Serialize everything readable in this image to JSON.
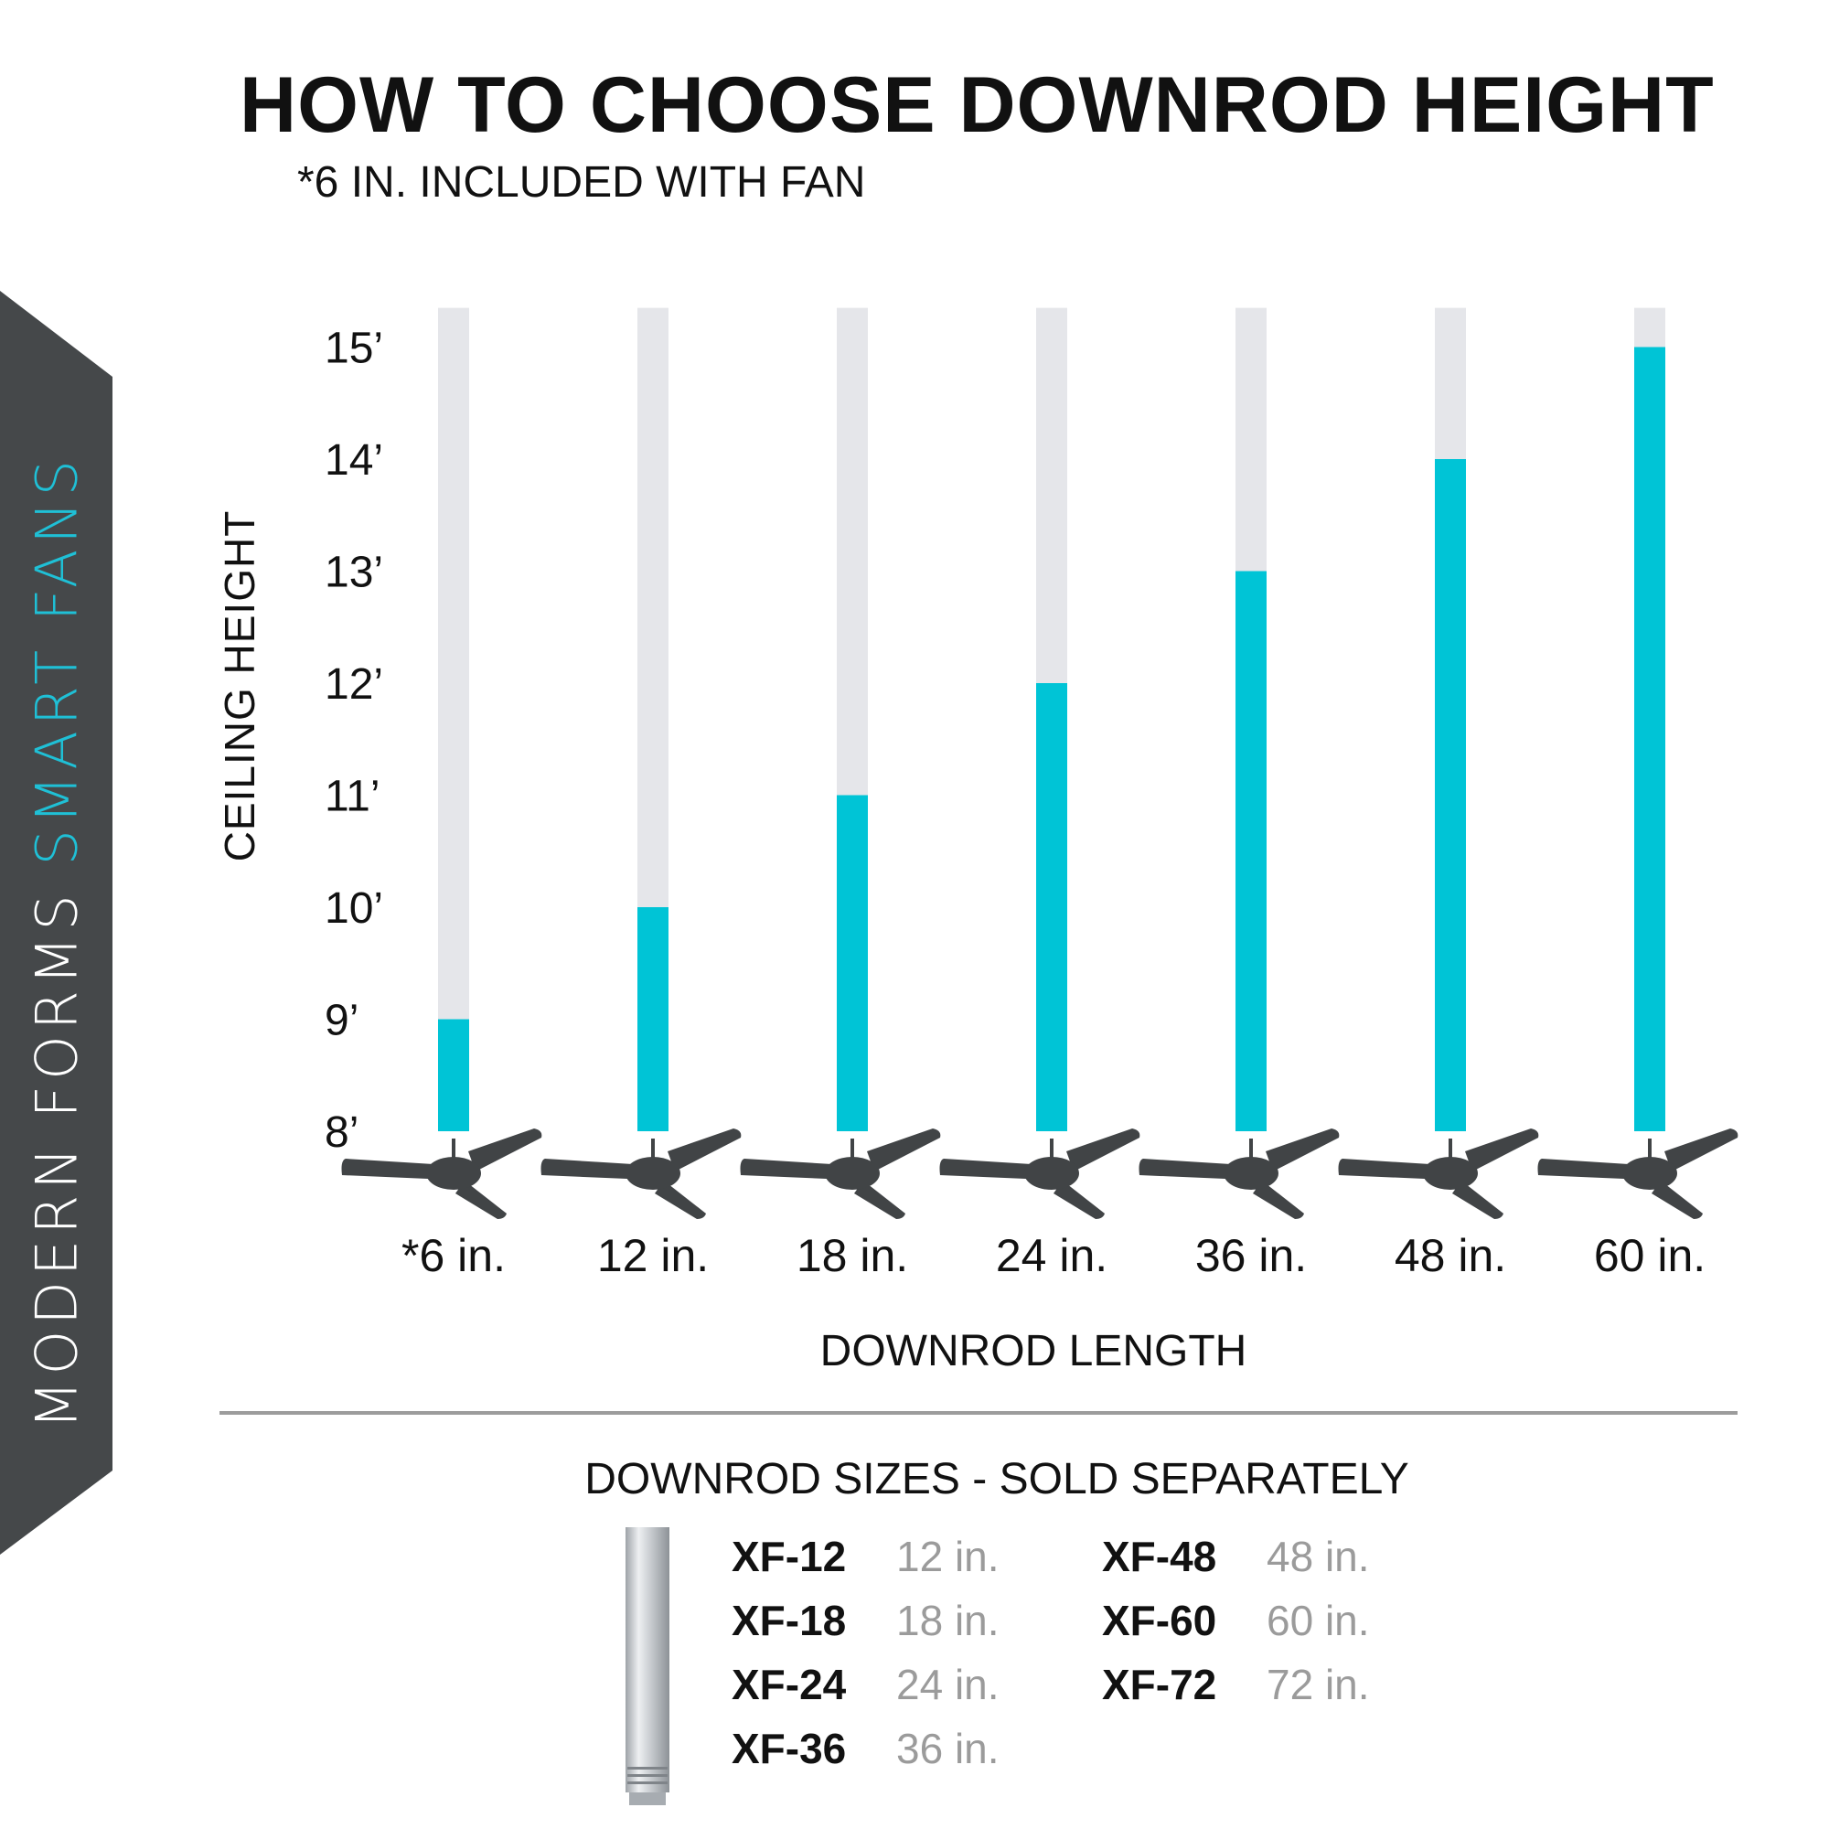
{
  "brand": {
    "part1": "MODERN FORMS",
    "part2": "SMART FANS"
  },
  "colors": {
    "accent": "#00c4d6",
    "track": "#e5e6ea",
    "fan": "#414446",
    "side_tab": "#45484a"
  },
  "header": {
    "title": "HOW TO CHOOSE DOWNROD HEIGHT",
    "subtitle": "*6 IN. INCLUDED WITH FAN"
  },
  "chart_data": {
    "type": "bar",
    "xlabel": "DOWNROD LENGTH",
    "ylabel": "CEILING HEIGHT",
    "categories": [
      "*6 in.",
      "12 in.",
      "18 in.",
      "24 in.",
      "36 in.",
      "48 in.",
      "60 in."
    ],
    "values": [
      9,
      10,
      11,
      12,
      13,
      14,
      15
    ],
    "y_ticks": [
      {
        "value": 8,
        "label": "8’"
      },
      {
        "value": 9,
        "label": "9’"
      },
      {
        "value": 10,
        "label": "10’"
      },
      {
        "value": 11,
        "label": "11’"
      },
      {
        "value": 12,
        "label": "12’"
      },
      {
        "value": 13,
        "label": "13’"
      },
      {
        "value": 14,
        "label": "14’"
      },
      {
        "value": 15,
        "label": "15’"
      }
    ],
    "ylim": [
      8,
      15.35
    ],
    "grid": false,
    "icon": "ceiling-fan-icon"
  },
  "sizes": {
    "title": "DOWNROD SIZES - SOLD SEPARATELY",
    "columns": [
      [
        {
          "code": "XF-12",
          "length": "12 in."
        },
        {
          "code": "XF-18",
          "length": "18 in."
        },
        {
          "code": "XF-24",
          "length": "24 in."
        },
        {
          "code": "XF-36",
          "length": "36 in."
        }
      ],
      [
        {
          "code": "XF-48",
          "length": "48 in."
        },
        {
          "code": "XF-60",
          "length": "60 in."
        },
        {
          "code": "XF-72",
          "length": "72 in."
        }
      ]
    ]
  }
}
